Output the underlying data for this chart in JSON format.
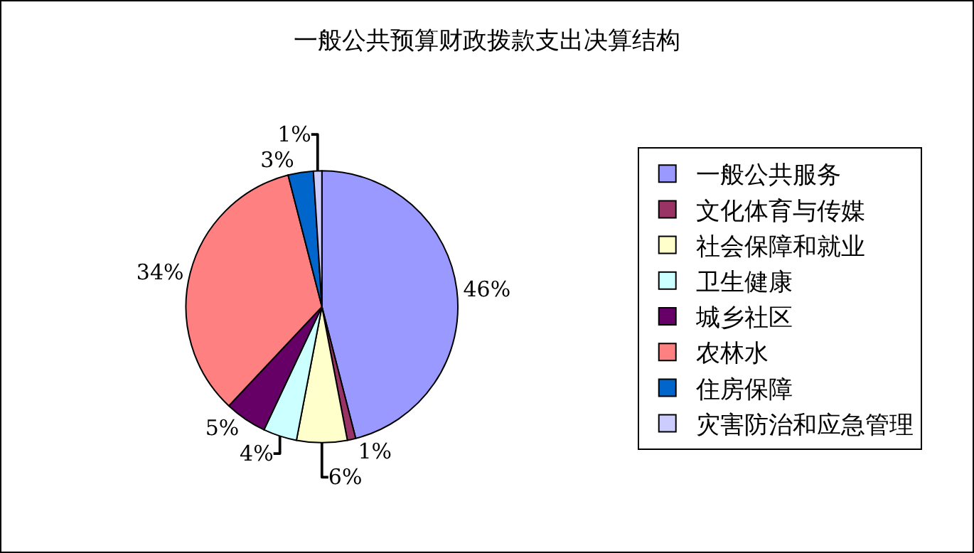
{
  "chart_data": {
    "type": "pie",
    "title": "一般公共预算财政拨款支出决算结构",
    "categories": [
      "一般公共服务",
      "文化体育与传媒",
      "社会保障和就业",
      "卫生健康",
      "城乡社区",
      "农林水",
      "住房保障",
      "灾害防治和应急管理"
    ],
    "values": [
      46,
      1,
      6,
      4,
      5,
      34,
      3,
      1
    ],
    "value_labels": [
      "46%",
      "1%",
      "6%",
      "4%",
      "5%",
      "34%",
      "3%",
      "1%"
    ],
    "colors": [
      "#9999ff",
      "#993366",
      "#ffffcc",
      "#ccffff",
      "#660066",
      "#ff8080",
      "#0066cc",
      "#ccccff"
    ],
    "legend": "right"
  }
}
